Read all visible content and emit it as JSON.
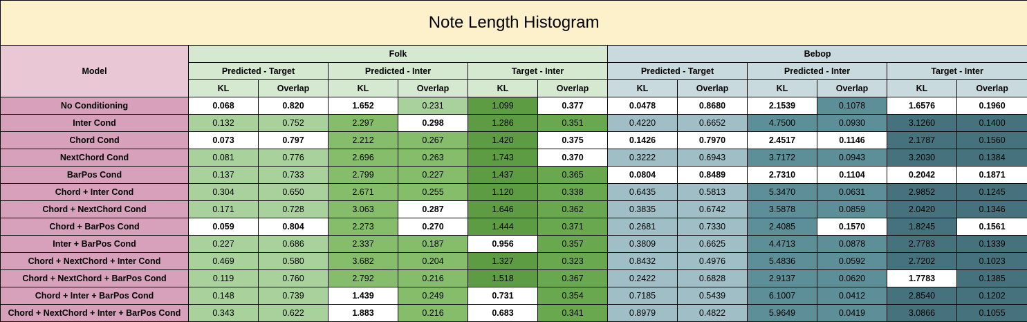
{
  "title": "Note Length Histogram",
  "headers": {
    "model": "Model",
    "groups": [
      "Folk",
      "Bebop"
    ],
    "subgroups": [
      "Predicted - Target",
      "Predicted - Inter",
      "Target - Inter",
      "Predicted - Target",
      "Predicted - Inter",
      "Target - Inter"
    ],
    "metrics": [
      "KL",
      "Overlap",
      "KL",
      "Overlap",
      "KL",
      "Overlap",
      "KL",
      "Overlap",
      "KL",
      "Overlap",
      "KL",
      "Overlap"
    ]
  },
  "colors": {
    "title_bg": "#fdf1cb",
    "model_header_bg": "#e9c7d5",
    "model_cell_bg": "#d7a1bc",
    "folk_header_bg": "#d5e8d0",
    "bebop_header_bg": "#c9dadf",
    "best_bg": "#ffffff",
    "folk_shades": [
      "#d5e8d0",
      "#a8d19b",
      "#86bd6a",
      "#6aa84f",
      "#5e9c44"
    ],
    "bebop_shades": [
      "#c9dadf",
      "#a0bec6",
      "#7aa6af",
      "#5d8f99",
      "#45727c"
    ]
  },
  "rows": [
    {
      "model": "No Conditioning",
      "cells": [
        {
          "v": "0.068",
          "b": true,
          "s": -1
        },
        {
          "v": "0.820",
          "b": true,
          "s": -1
        },
        {
          "v": "1.652",
          "b": true,
          "s": -1
        },
        {
          "v": "0.231",
          "b": false,
          "s": 1
        },
        {
          "v": "1.099",
          "b": false,
          "s": 4
        },
        {
          "v": "0.377",
          "b": true,
          "s": -1
        },
        {
          "v": "0.0478",
          "b": true,
          "s": -1
        },
        {
          "v": "0.8680",
          "b": true,
          "s": -1
        },
        {
          "v": "2.1539",
          "b": true,
          "s": -1
        },
        {
          "v": "0.1078",
          "b": false,
          "s": 3
        },
        {
          "v": "1.6576",
          "b": true,
          "s": -1
        },
        {
          "v": "0.1960",
          "b": true,
          "s": -1
        }
      ]
    },
    {
      "model": "Inter Cond",
      "cells": [
        {
          "v": "0.132",
          "b": false,
          "s": 1
        },
        {
          "v": "0.752",
          "b": false,
          "s": 1
        },
        {
          "v": "2.297",
          "b": false,
          "s": 2
        },
        {
          "v": "0.298",
          "b": true,
          "s": -1
        },
        {
          "v": "1.286",
          "b": false,
          "s": 4
        },
        {
          "v": "0.351",
          "b": false,
          "s": 3
        },
        {
          "v": "0.4220",
          "b": false,
          "s": 1
        },
        {
          "v": "0.6652",
          "b": false,
          "s": 1
        },
        {
          "v": "4.7500",
          "b": false,
          "s": 3
        },
        {
          "v": "0.0930",
          "b": false,
          "s": 3
        },
        {
          "v": "3.1260",
          "b": false,
          "s": 4
        },
        {
          "v": "0.1400",
          "b": false,
          "s": 4
        }
      ]
    },
    {
      "model": "Chord Cond",
      "cells": [
        {
          "v": "0.073",
          "b": true,
          "s": -1
        },
        {
          "v": "0.797",
          "b": true,
          "s": -1
        },
        {
          "v": "2.212",
          "b": false,
          "s": 2
        },
        {
          "v": "0.267",
          "b": false,
          "s": 2
        },
        {
          "v": "1.420",
          "b": false,
          "s": 4
        },
        {
          "v": "0.375",
          "b": true,
          "s": -1
        },
        {
          "v": "0.1426",
          "b": true,
          "s": -1
        },
        {
          "v": "0.7970",
          "b": true,
          "s": -1
        },
        {
          "v": "2.4517",
          "b": true,
          "s": -1
        },
        {
          "v": "0.1146",
          "b": true,
          "s": -1
        },
        {
          "v": "2.1787",
          "b": false,
          "s": 4
        },
        {
          "v": "0.1560",
          "b": false,
          "s": 4
        }
      ]
    },
    {
      "model": "NextChord Cond",
      "cells": [
        {
          "v": "0.081",
          "b": false,
          "s": 1
        },
        {
          "v": "0.776",
          "b": false,
          "s": 1
        },
        {
          "v": "2.696",
          "b": false,
          "s": 2
        },
        {
          "v": "0.263",
          "b": false,
          "s": 2
        },
        {
          "v": "1.743",
          "b": false,
          "s": 4
        },
        {
          "v": "0.370",
          "b": true,
          "s": -1
        },
        {
          "v": "0.3222",
          "b": false,
          "s": 1
        },
        {
          "v": "0.6943",
          "b": false,
          "s": 1
        },
        {
          "v": "3.7172",
          "b": false,
          "s": 3
        },
        {
          "v": "0.0943",
          "b": false,
          "s": 3
        },
        {
          "v": "3.2030",
          "b": false,
          "s": 4
        },
        {
          "v": "0.1384",
          "b": false,
          "s": 4
        }
      ]
    },
    {
      "model": "BarPos Cond",
      "cells": [
        {
          "v": "0.137",
          "b": false,
          "s": 1
        },
        {
          "v": "0.733",
          "b": false,
          "s": 1
        },
        {
          "v": "2.799",
          "b": false,
          "s": 2
        },
        {
          "v": "0.227",
          "b": false,
          "s": 2
        },
        {
          "v": "1.437",
          "b": false,
          "s": 4
        },
        {
          "v": "0.365",
          "b": false,
          "s": 3
        },
        {
          "v": "0.0804",
          "b": true,
          "s": -1
        },
        {
          "v": "0.8489",
          "b": true,
          "s": -1
        },
        {
          "v": "2.7310",
          "b": true,
          "s": -1
        },
        {
          "v": "0.1104",
          "b": true,
          "s": -1
        },
        {
          "v": "0.2042",
          "b": true,
          "s": -1
        },
        {
          "v": "0.1871",
          "b": true,
          "s": -1
        }
      ]
    },
    {
      "model": "Chord + Inter Cond",
      "cells": [
        {
          "v": "0.304",
          "b": false,
          "s": 1
        },
        {
          "v": "0.650",
          "b": false,
          "s": 1
        },
        {
          "v": "2.671",
          "b": false,
          "s": 2
        },
        {
          "v": "0.255",
          "b": false,
          "s": 2
        },
        {
          "v": "1.120",
          "b": false,
          "s": 4
        },
        {
          "v": "0.338",
          "b": false,
          "s": 3
        },
        {
          "v": "0.6435",
          "b": false,
          "s": 1
        },
        {
          "v": "0.5813",
          "b": false,
          "s": 1
        },
        {
          "v": "5.3470",
          "b": false,
          "s": 3
        },
        {
          "v": "0.0631",
          "b": false,
          "s": 3
        },
        {
          "v": "2.9852",
          "b": false,
          "s": 4
        },
        {
          "v": "0.1245",
          "b": false,
          "s": 4
        }
      ]
    },
    {
      "model": "Chord + NextChord Cond",
      "cells": [
        {
          "v": "0.171",
          "b": false,
          "s": 1
        },
        {
          "v": "0.728",
          "b": false,
          "s": 1
        },
        {
          "v": "3.063",
          "b": false,
          "s": 2
        },
        {
          "v": "0.287",
          "b": true,
          "s": -1
        },
        {
          "v": "1.646",
          "b": false,
          "s": 4
        },
        {
          "v": "0.362",
          "b": false,
          "s": 3
        },
        {
          "v": "0.3835",
          "b": false,
          "s": 1
        },
        {
          "v": "0.6742",
          "b": false,
          "s": 1
        },
        {
          "v": "3.5878",
          "b": false,
          "s": 3
        },
        {
          "v": "0.0859",
          "b": false,
          "s": 3
        },
        {
          "v": "2.0420",
          "b": false,
          "s": 4
        },
        {
          "v": "0.1346",
          "b": false,
          "s": 4
        }
      ]
    },
    {
      "model": "Chord + BarPos Cond",
      "cells": [
        {
          "v": "0.059",
          "b": true,
          "s": -1
        },
        {
          "v": "0.804",
          "b": true,
          "s": -1
        },
        {
          "v": "2.273",
          "b": false,
          "s": 2
        },
        {
          "v": "0.270",
          "b": true,
          "s": -1
        },
        {
          "v": "1.444",
          "b": false,
          "s": 4
        },
        {
          "v": "0.371",
          "b": false,
          "s": 3
        },
        {
          "v": "0.2681",
          "b": false,
          "s": 1
        },
        {
          "v": "0.7330",
          "b": false,
          "s": 1
        },
        {
          "v": "2.4085",
          "b": false,
          "s": 3
        },
        {
          "v": "0.1570",
          "b": true,
          "s": -1
        },
        {
          "v": "1.8245",
          "b": false,
          "s": 4
        },
        {
          "v": "0.1561",
          "b": true,
          "s": -1
        }
      ]
    },
    {
      "model": "Inter + BarPos Cond",
      "cells": [
        {
          "v": "0.227",
          "b": false,
          "s": 1
        },
        {
          "v": "0.686",
          "b": false,
          "s": 1
        },
        {
          "v": "2.337",
          "b": false,
          "s": 2
        },
        {
          "v": "0.187",
          "b": false,
          "s": 2
        },
        {
          "v": "0.956",
          "b": true,
          "s": -1
        },
        {
          "v": "0.357",
          "b": false,
          "s": 3
        },
        {
          "v": "0.3809",
          "b": false,
          "s": 1
        },
        {
          "v": "0.6625",
          "b": false,
          "s": 1
        },
        {
          "v": "4.4713",
          "b": false,
          "s": 3
        },
        {
          "v": "0.0878",
          "b": false,
          "s": 3
        },
        {
          "v": "2.7783",
          "b": false,
          "s": 4
        },
        {
          "v": "0.1339",
          "b": false,
          "s": 4
        }
      ]
    },
    {
      "model": "Chord + NextChord + Inter Cond",
      "cells": [
        {
          "v": "0.469",
          "b": false,
          "s": 1
        },
        {
          "v": "0.580",
          "b": false,
          "s": 1
        },
        {
          "v": "3.682",
          "b": false,
          "s": 2
        },
        {
          "v": "0.204",
          "b": false,
          "s": 2
        },
        {
          "v": "1.327",
          "b": false,
          "s": 4
        },
        {
          "v": "0.323",
          "b": false,
          "s": 3
        },
        {
          "v": "0.8432",
          "b": false,
          "s": 1
        },
        {
          "v": "0.4976",
          "b": false,
          "s": 1
        },
        {
          "v": "5.4836",
          "b": false,
          "s": 3
        },
        {
          "v": "0.0592",
          "b": false,
          "s": 3
        },
        {
          "v": "2.7202",
          "b": false,
          "s": 4
        },
        {
          "v": "0.1023",
          "b": false,
          "s": 4
        }
      ]
    },
    {
      "model": "Chord + NextChord + BarPos Cond",
      "cells": [
        {
          "v": "0.119",
          "b": false,
          "s": 1
        },
        {
          "v": "0.760",
          "b": false,
          "s": 1
        },
        {
          "v": "2.792",
          "b": false,
          "s": 2
        },
        {
          "v": "0.216",
          "b": false,
          "s": 2
        },
        {
          "v": "1.518",
          "b": false,
          "s": 4
        },
        {
          "v": "0.367",
          "b": false,
          "s": 3
        },
        {
          "v": "0.2422",
          "b": false,
          "s": 1
        },
        {
          "v": "0.6828",
          "b": false,
          "s": 1
        },
        {
          "v": "2.9137",
          "b": false,
          "s": 3
        },
        {
          "v": "0.0620",
          "b": false,
          "s": 3
        },
        {
          "v": "1.7783",
          "b": true,
          "s": -1
        },
        {
          "v": "0.1385",
          "b": false,
          "s": 4
        }
      ]
    },
    {
      "model": "Chord + Inter + BarPos Cond",
      "cells": [
        {
          "v": "0.148",
          "b": false,
          "s": 1
        },
        {
          "v": "0.739",
          "b": false,
          "s": 1
        },
        {
          "v": "1.439",
          "b": true,
          "s": -1
        },
        {
          "v": "0.249",
          "b": false,
          "s": 2
        },
        {
          "v": "0.731",
          "b": true,
          "s": -1
        },
        {
          "v": "0.354",
          "b": false,
          "s": 3
        },
        {
          "v": "0.7185",
          "b": false,
          "s": 1
        },
        {
          "v": "0.5439",
          "b": false,
          "s": 1
        },
        {
          "v": "6.1007",
          "b": false,
          "s": 3
        },
        {
          "v": "0.0412",
          "b": false,
          "s": 3
        },
        {
          "v": "2.8540",
          "b": false,
          "s": 4
        },
        {
          "v": "0.1202",
          "b": false,
          "s": 4
        }
      ]
    },
    {
      "model": "Chord + NextChord + Inter + BarPos Cond",
      "cells": [
        {
          "v": "0.343",
          "b": false,
          "s": 1
        },
        {
          "v": "0.622",
          "b": false,
          "s": 1
        },
        {
          "v": "1.883",
          "b": true,
          "s": -1
        },
        {
          "v": "0.216",
          "b": false,
          "s": 2
        },
        {
          "v": "0.683",
          "b": true,
          "s": -1
        },
        {
          "v": "0.341",
          "b": false,
          "s": 3
        },
        {
          "v": "0.8979",
          "b": false,
          "s": 1
        },
        {
          "v": "0.4822",
          "b": false,
          "s": 1
        },
        {
          "v": "5.9649",
          "b": false,
          "s": 3
        },
        {
          "v": "0.0419",
          "b": false,
          "s": 3
        },
        {
          "v": "3.0866",
          "b": false,
          "s": 4
        },
        {
          "v": "0.1055",
          "b": false,
          "s": 4
        }
      ]
    }
  ]
}
